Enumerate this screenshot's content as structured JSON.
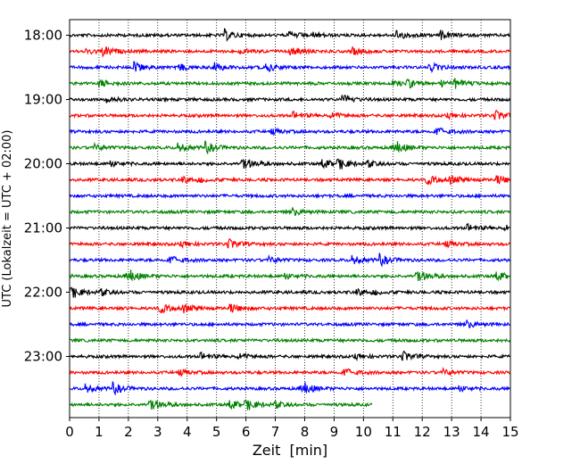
{
  "chart_data": {
    "type": "line",
    "xlabel": "Zeit  [min]",
    "ylabel": "UTC (Lokalzeit = UTC + 02:00)",
    "xlim": [
      0,
      15
    ],
    "x_ticks": [
      "0",
      "1",
      "2",
      "3",
      "4",
      "5",
      "6",
      "7",
      "8",
      "9",
      "10",
      "11",
      "12",
      "13",
      "14",
      "15"
    ],
    "y_tick_labels": [
      "18:00",
      "19:00",
      "20:00",
      "21:00",
      "22:00",
      "23:00"
    ],
    "grid": "vertical dotted",
    "trace_minutes": 15,
    "traces": [
      {
        "start": "18:00",
        "color": "#000000",
        "end_min": 15
      },
      {
        "start": "18:15",
        "color": "#ff0000",
        "end_min": 15
      },
      {
        "start": "18:30",
        "color": "#0000ff",
        "end_min": 15
      },
      {
        "start": "18:45",
        "color": "#008000",
        "end_min": 15
      },
      {
        "start": "19:00",
        "color": "#000000",
        "end_min": 15
      },
      {
        "start": "19:15",
        "color": "#ff0000",
        "end_min": 15
      },
      {
        "start": "19:30",
        "color": "#0000ff",
        "end_min": 15
      },
      {
        "start": "19:45",
        "color": "#008000",
        "end_min": 15
      },
      {
        "start": "20:00",
        "color": "#000000",
        "end_min": 15
      },
      {
        "start": "20:15",
        "color": "#ff0000",
        "end_min": 15
      },
      {
        "start": "20:30",
        "color": "#0000ff",
        "end_min": 15
      },
      {
        "start": "20:45",
        "color": "#008000",
        "end_min": 15
      },
      {
        "start": "21:00",
        "color": "#000000",
        "end_min": 15
      },
      {
        "start": "21:15",
        "color": "#ff0000",
        "end_min": 15
      },
      {
        "start": "21:30",
        "color": "#0000ff",
        "end_min": 15
      },
      {
        "start": "21:45",
        "color": "#008000",
        "end_min": 15
      },
      {
        "start": "22:00",
        "color": "#000000",
        "end_min": 15
      },
      {
        "start": "22:15",
        "color": "#ff0000",
        "end_min": 15
      },
      {
        "start": "22:30",
        "color": "#0000ff",
        "end_min": 15
      },
      {
        "start": "22:45",
        "color": "#008000",
        "end_min": 15
      },
      {
        "start": "23:00",
        "color": "#000000",
        "end_min": 15
      },
      {
        "start": "23:15",
        "color": "#ff0000",
        "end_min": 15
      },
      {
        "start": "23:30",
        "color": "#0000ff",
        "end_min": 15
      },
      {
        "start": "23:45",
        "color": "#008000",
        "end_min": 10.3
      }
    ]
  }
}
